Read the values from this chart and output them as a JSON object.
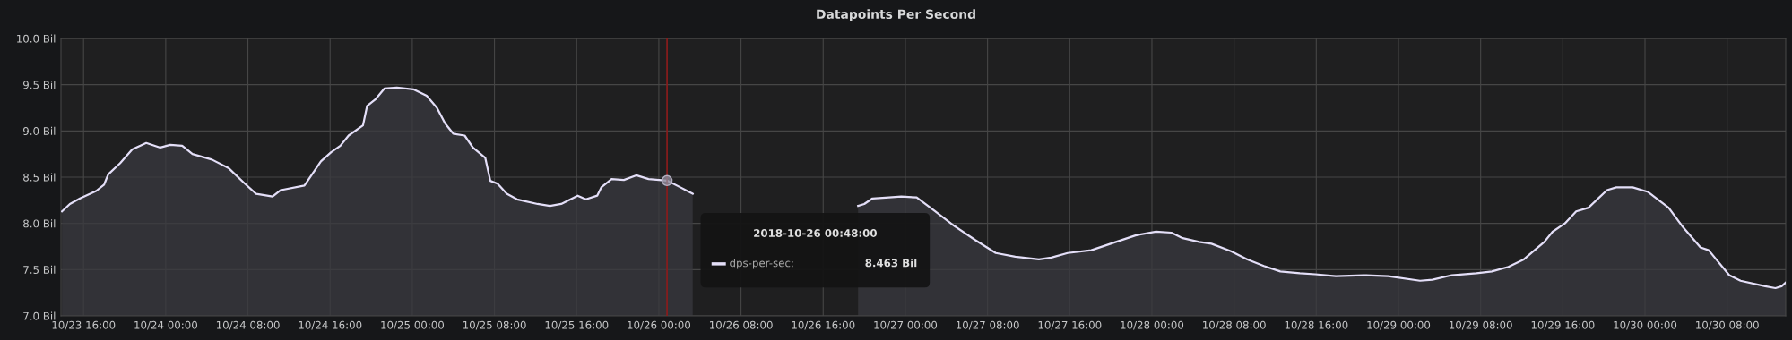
{
  "chart_data": {
    "type": "area",
    "title": "Datapoints Per Second",
    "x": [
      "2018-10-23T13:54",
      "2018-10-23T14:40",
      "2018-10-23T15:39",
      "2018-10-23T17:13",
      "2018-10-23T18:00",
      "2018-10-23T18:24",
      "2018-10-23T19:33",
      "2018-10-23T20:44",
      "2018-10-23T22:06",
      "2018-10-23T23:28",
      "2018-10-24T00:26",
      "2018-10-24T01:36",
      "2018-10-24T02:36",
      "2018-10-24T04:30",
      "2018-10-24T06:06",
      "2018-10-24T07:42",
      "2018-10-24T08:48",
      "2018-10-24T10:24",
      "2018-10-24T11:12",
      "2018-10-24T13:30",
      "2018-10-24T15:06",
      "2018-10-24T16:06",
      "2018-10-24T17:00",
      "2018-10-24T17:48",
      "2018-10-24T19:12",
      "2018-10-24T19:36",
      "2018-10-24T20:24",
      "2018-10-24T21:18",
      "2018-10-24T22:30",
      "2018-10-25T00:06",
      "2018-10-25T01:24",
      "2018-10-25T02:24",
      "2018-10-25T03:12",
      "2018-10-25T04:00",
      "2018-10-25T05:06",
      "2018-10-25T05:54",
      "2018-10-25T07:06",
      "2018-10-25T07:36",
      "2018-10-25T08:18",
      "2018-10-25T09:12",
      "2018-10-25T10:12",
      "2018-10-25T12:12",
      "2018-10-25T13:24",
      "2018-10-25T14:30",
      "2018-10-25T16:06",
      "2018-10-25T16:54",
      "2018-10-25T18:00",
      "2018-10-25T18:24",
      "2018-10-25T19:24",
      "2018-10-25T20:36",
      "2018-10-25T21:48",
      "2018-10-25T23:00",
      "2018-10-26T00:48",
      "2018-10-26T02:06",
      "2018-10-26T03:18",
      "2018-10-26T05:12",
      "2018-10-26T12:00",
      "2018-10-26T19:24",
      "2018-10-26T20:00",
      "2018-10-26T20:48",
      "2018-10-26T22:24",
      "2018-10-26T23:36",
      "2018-10-27T01:06",
      "2018-10-27T02:54",
      "2018-10-27T04:48",
      "2018-10-27T06:48",
      "2018-10-27T08:48",
      "2018-10-27T10:42",
      "2018-10-27T13:00",
      "2018-10-27T14:12",
      "2018-10-27T15:48",
      "2018-10-27T18:06",
      "2018-10-27T20:30",
      "2018-10-27T22:24",
      "2018-10-28T00:24",
      "2018-10-28T01:54",
      "2018-10-28T03:00",
      "2018-10-28T04:36",
      "2018-10-28T05:48",
      "2018-10-28T07:42",
      "2018-10-28T09:18",
      "2018-10-28T10:54",
      "2018-10-28T12:30",
      "2018-10-28T14:24",
      "2018-10-28T15:54",
      "2018-10-28T17:54",
      "2018-10-28T20:36",
      "2018-10-28T23:00",
      "2018-10-29T02:06",
      "2018-10-29T03:18",
      "2018-10-29T05:12",
      "2018-10-29T07:36",
      "2018-10-29T09:06",
      "2018-10-29T10:42",
      "2018-10-29T12:12",
      "2018-10-29T14:12",
      "2018-10-29T15:00",
      "2018-10-29T16:12",
      "2018-10-29T17:18",
      "2018-10-29T18:30",
      "2018-10-29T20:18",
      "2018-10-29T21:12",
      "2018-10-29T22:48",
      "2018-10-30T00:18",
      "2018-10-30T02:18",
      "2018-10-30T03:42",
      "2018-10-30T05:24",
      "2018-10-30T06:12",
      "2018-10-30T08:12",
      "2018-10-30T09:18",
      "2018-10-30T11:42",
      "2018-10-30T12:42",
      "2018-10-30T13:18",
      "2018-10-30T13:42"
    ],
    "series": [
      {
        "name": "dps-per-sec:",
        "color": "#e4dff8",
        "values": [
          8.13,
          8.21,
          8.27,
          8.35,
          8.42,
          8.53,
          8.65,
          8.8,
          8.87,
          8.82,
          8.85,
          8.84,
          8.75,
          8.69,
          8.6,
          8.43,
          8.32,
          8.29,
          8.36,
          8.41,
          8.67,
          8.77,
          8.84,
          8.95,
          9.06,
          9.27,
          9.34,
          9.46,
          9.47,
          9.45,
          9.38,
          9.25,
          9.08,
          8.97,
          8.95,
          8.82,
          8.71,
          8.46,
          8.43,
          8.32,
          8.26,
          8.21,
          8.19,
          8.21,
          8.3,
          8.26,
          8.3,
          8.39,
          8.48,
          8.47,
          8.52,
          8.48,
          8.463,
          8.39,
          8.32,
          null,
          null,
          8.19,
          8.21,
          8.27,
          8.28,
          8.29,
          8.28,
          8.13,
          7.97,
          7.82,
          7.68,
          7.64,
          7.61,
          7.63,
          7.68,
          7.71,
          7.8,
          7.87,
          7.91,
          7.9,
          7.84,
          7.8,
          7.78,
          7.7,
          7.61,
          7.54,
          7.48,
          7.46,
          7.45,
          7.43,
          7.44,
          7.43,
          7.38,
          7.39,
          7.44,
          7.46,
          7.48,
          7.53,
          7.61,
          7.8,
          7.91,
          8.0,
          8.13,
          8.17,
          8.36,
          8.39,
          8.39,
          8.34,
          8.17,
          7.96,
          7.74,
          7.71,
          7.44,
          7.38,
          7.32,
          7.3,
          7.32,
          7.36
        ]
      }
    ],
    "xlim": [
      "2018-10-23T13:48",
      "2018-10-30T13:42"
    ],
    "xticks": [
      {
        "value": "2018-10-23T16:00",
        "label": "10/23 16:00"
      },
      {
        "value": "2018-10-24T00:00",
        "label": "10/24 00:00"
      },
      {
        "value": "2018-10-24T08:00",
        "label": "10/24 08:00"
      },
      {
        "value": "2018-10-24T16:00",
        "label": "10/24 16:00"
      },
      {
        "value": "2018-10-25T00:00",
        "label": "10/25 00:00"
      },
      {
        "value": "2018-10-25T08:00",
        "label": "10/25 08:00"
      },
      {
        "value": "2018-10-25T16:00",
        "label": "10/25 16:00"
      },
      {
        "value": "2018-10-26T00:00",
        "label": "10/26 00:00"
      },
      {
        "value": "2018-10-26T08:00",
        "label": "10/26 08:00"
      },
      {
        "value": "2018-10-26T16:00",
        "label": "10/26 16:00"
      },
      {
        "value": "2018-10-27T00:00",
        "label": "10/27 00:00"
      },
      {
        "value": "2018-10-27T08:00",
        "label": "10/27 08:00"
      },
      {
        "value": "2018-10-27T16:00",
        "label": "10/27 16:00"
      },
      {
        "value": "2018-10-28T00:00",
        "label": "10/28 00:00"
      },
      {
        "value": "2018-10-28T08:00",
        "label": "10/28 08:00"
      },
      {
        "value": "2018-10-28T16:00",
        "label": "10/28 16:00"
      },
      {
        "value": "2018-10-29T00:00",
        "label": "10/29 00:00"
      },
      {
        "value": "2018-10-29T08:00",
        "label": "10/29 08:00"
      },
      {
        "value": "2018-10-29T16:00",
        "label": "10/29 16:00"
      },
      {
        "value": "2018-10-30T00:00",
        "label": "10/30 00:00"
      },
      {
        "value": "2018-10-30T08:00",
        "label": "10/30 08:00"
      }
    ],
    "ylim": [
      7.0,
      10.0
    ],
    "yticks": [
      {
        "value": 7.0,
        "label": "7.0 Bil"
      },
      {
        "value": 7.5,
        "label": "7.5 Bil"
      },
      {
        "value": 8.0,
        "label": "8.0 Bil"
      },
      {
        "value": 8.5,
        "label": "8.5 Bil"
      },
      {
        "value": 9.0,
        "label": "9.0 Bil"
      },
      {
        "value": 9.5,
        "label": "9.5 Bil"
      },
      {
        "value": 10.0,
        "label": "10.0 Bil"
      }
    ],
    "grid": true,
    "ref_lines": [
      {
        "axis": "x",
        "value": "2018-10-26T00:48",
        "color": "#8b1c1c"
      }
    ],
    "annotations": [
      "2018-10-26 00:48:00",
      "8.463 Bil"
    ]
  }
}
